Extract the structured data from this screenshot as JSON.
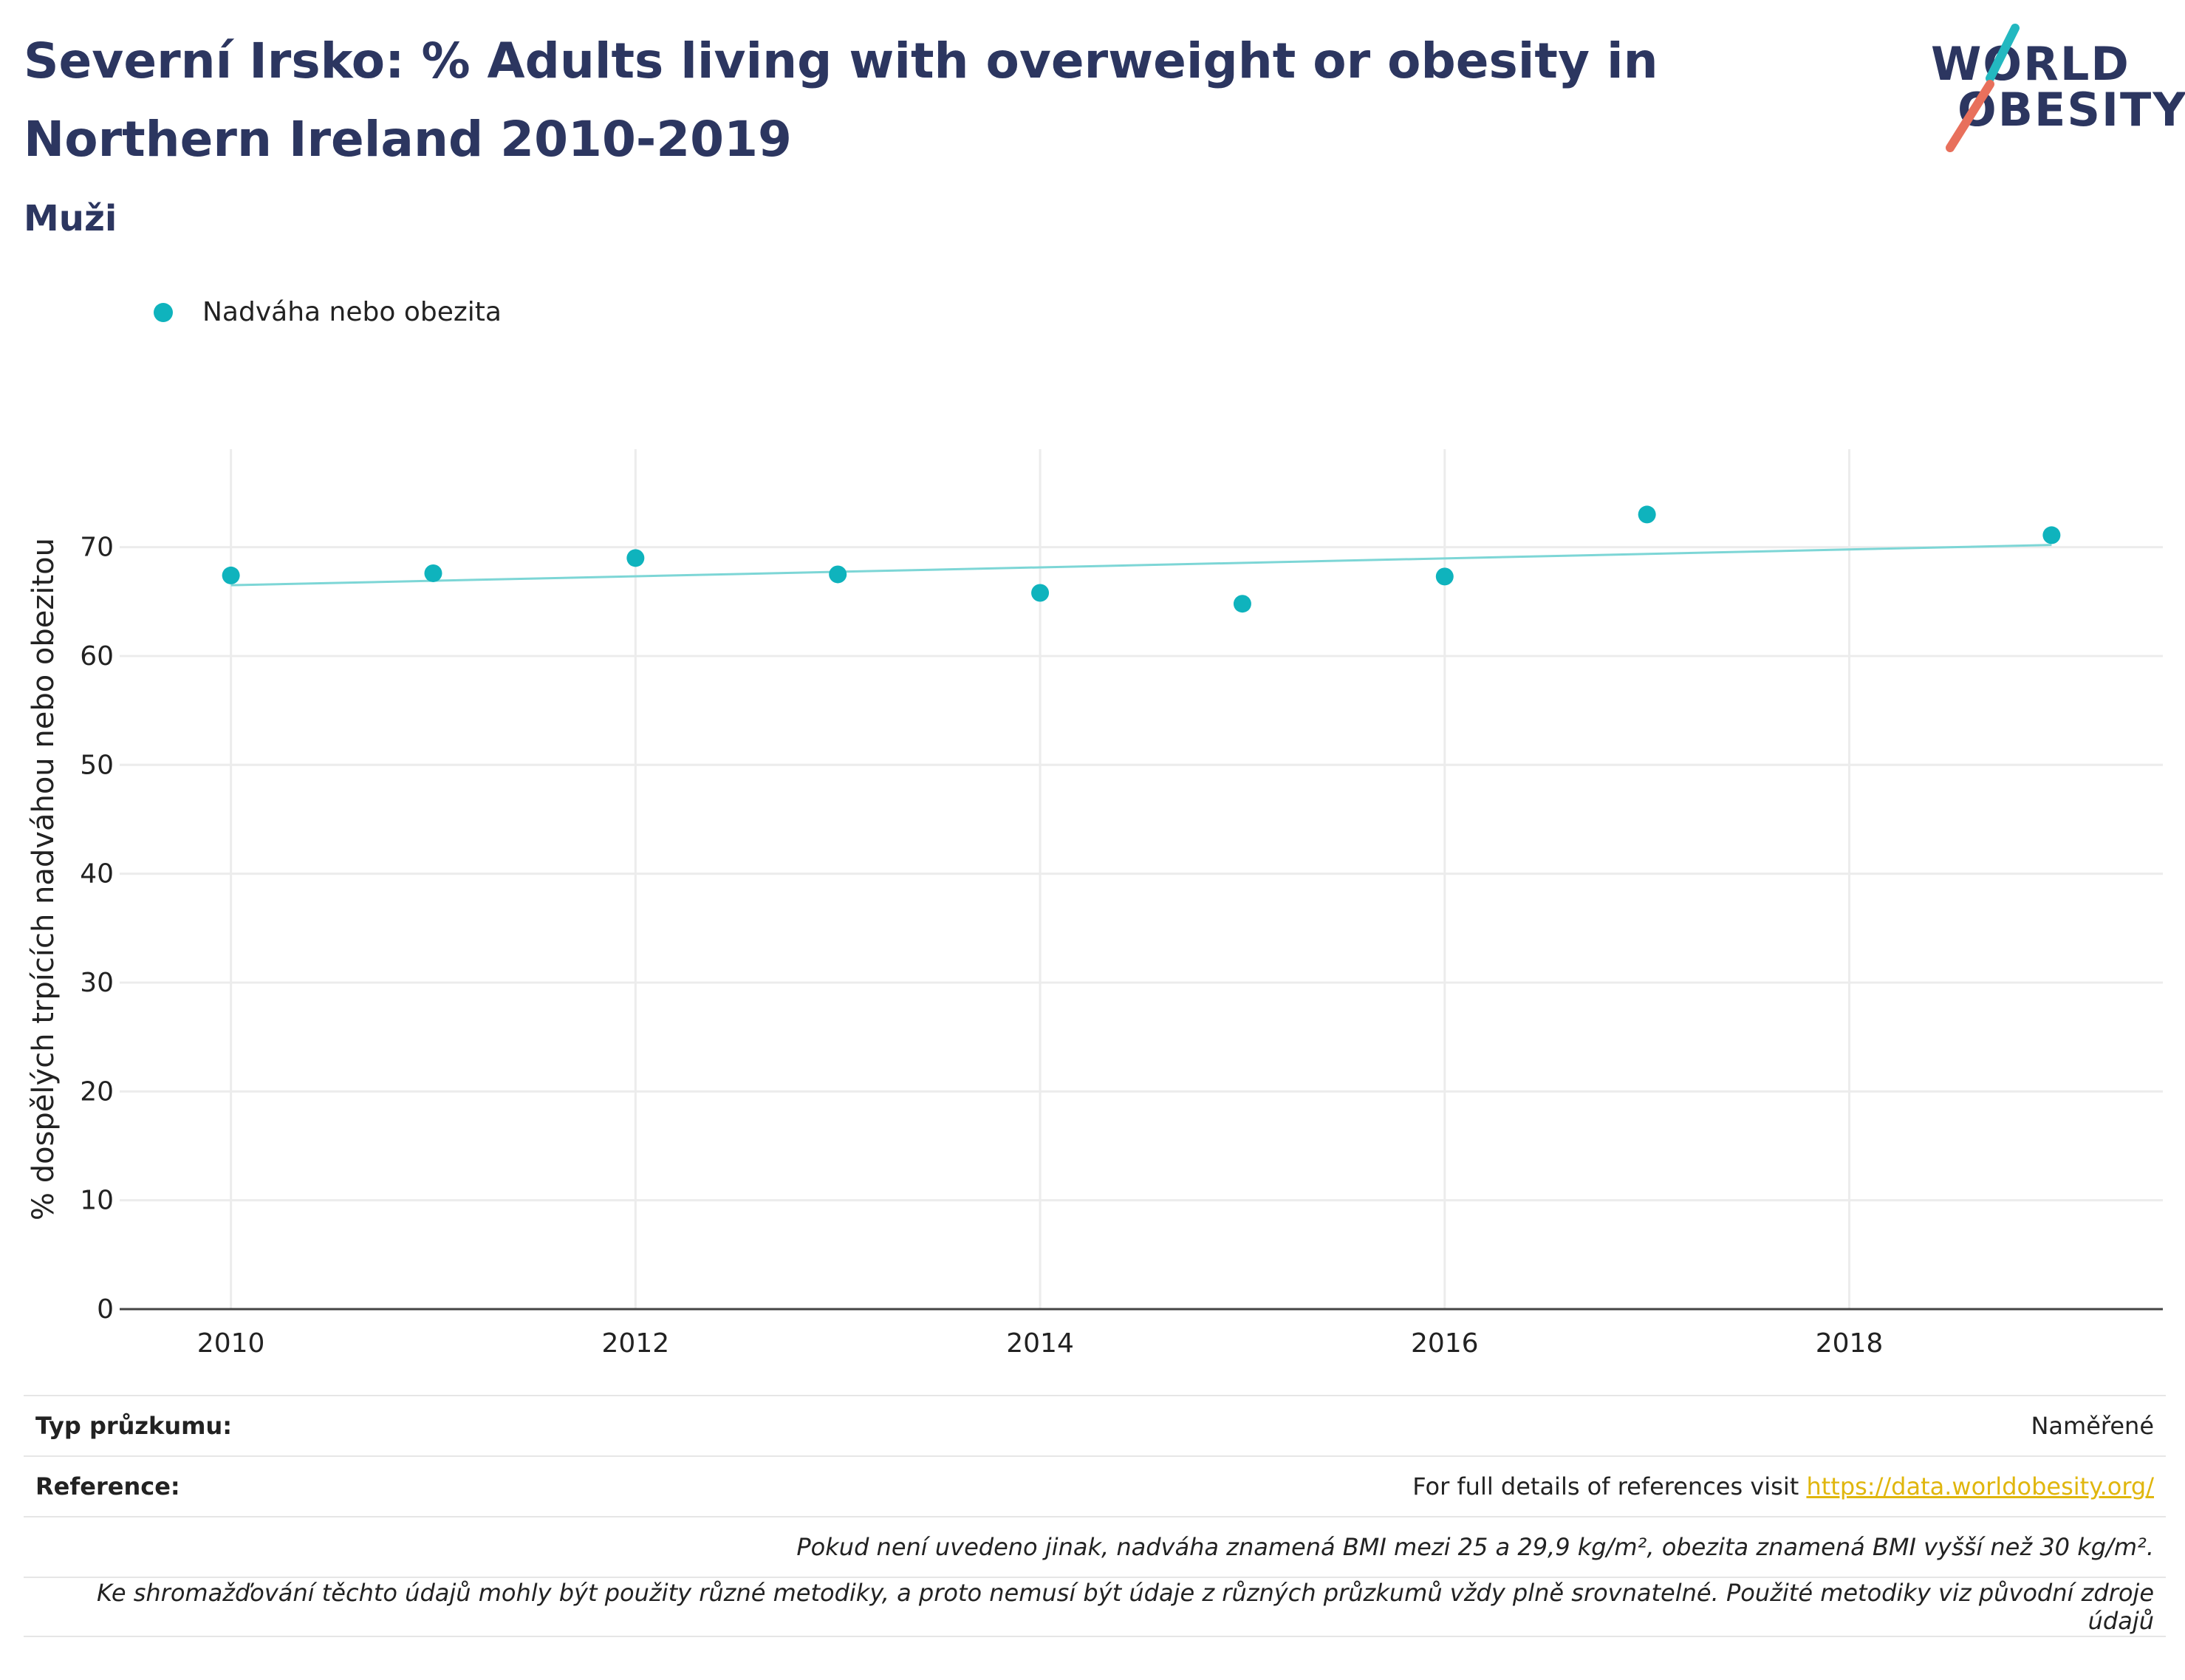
{
  "title": "Severní Irsko: % Adults living with overweight or obesity in Northern Ireland 2010-2019",
  "subtitle": "Muži",
  "logo": {
    "line1": "WORLD",
    "line2": "OBESITY"
  },
  "legend": {
    "label": "Nadváha nebo obezita"
  },
  "colors": {
    "marker": "#0fb3bd",
    "trend": "#7dd6d6",
    "title": "#2c3660",
    "link": "#e0b60d",
    "logo_slash_top": "#23b8c0",
    "logo_slash_bottom": "#e8705c"
  },
  "chart_data": {
    "type": "scatter",
    "ylabel": "% dospělých trpících nadváhou nebo obezitou",
    "xlabel": "",
    "xlim": [
      2009.45,
      2019.55
    ],
    "ylim": [
      0,
      79
    ],
    "x_ticks": [
      2010,
      2012,
      2014,
      2016,
      2018
    ],
    "y_ticks": [
      0,
      10,
      20,
      30,
      40,
      50,
      60,
      70
    ],
    "grid": true,
    "legend_position": "top-left",
    "series": [
      {
        "name": "Nadváha nebo obezita",
        "x": [
          2010,
          2011,
          2012,
          2013,
          2014,
          2015,
          2016,
          2017,
          2019
        ],
        "y": [
          67.4,
          67.6,
          69.0,
          67.5,
          65.8,
          64.8,
          67.3,
          73.0,
          71.1
        ]
      }
    ],
    "trendline": {
      "x": [
        2010,
        2019
      ],
      "y": [
        66.5,
        70.2
      ]
    }
  },
  "info": {
    "survey_type_label": "Typ průzkumu:",
    "survey_type_value": "Naměřené",
    "reference_label": "Reference:",
    "reference_text": "For full details of references visit ",
    "reference_link": "https://data.worldobesity.org/",
    "note1": "Pokud není uvedeno jinak, nadváha znamená BMI mezi 25 a 29,9 kg/m², obezita znamená BMI vyšší než 30 kg/m².",
    "note2": "Ke shromažďování těchto údajů mohly být použity různé metodiky, a proto nemusí být údaje z různých průzkumů vždy plně srovnatelné. Použité metodiky viz původní zdroje údajů"
  }
}
